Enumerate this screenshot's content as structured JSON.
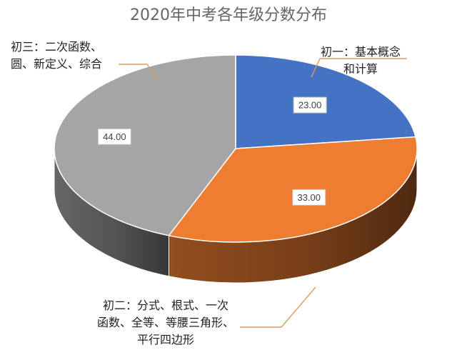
{
  "chart_data": {
    "type": "pie",
    "title": "2020年中考各年级分数分布",
    "categories": [
      [
        "初一：基本概念",
        "和计算"
      ],
      [
        "初二：分式、根式、一次",
        "函数、全等、等腰三角形、",
        "平行四边形"
      ],
      [
        "初三：二次函数、",
        "圆、新定义、综合"
      ]
    ],
    "values": [
      23.0,
      33.0,
      44.0
    ],
    "value_labels": [
      "23.00",
      "33.00",
      "44.00"
    ],
    "colors": [
      "#4472c4",
      "#ed7d31",
      "#a5a5a5"
    ],
    "style": "3d-tilted",
    "legend": "none",
    "start_angle_deg": 0,
    "direction": "clockwise"
  }
}
